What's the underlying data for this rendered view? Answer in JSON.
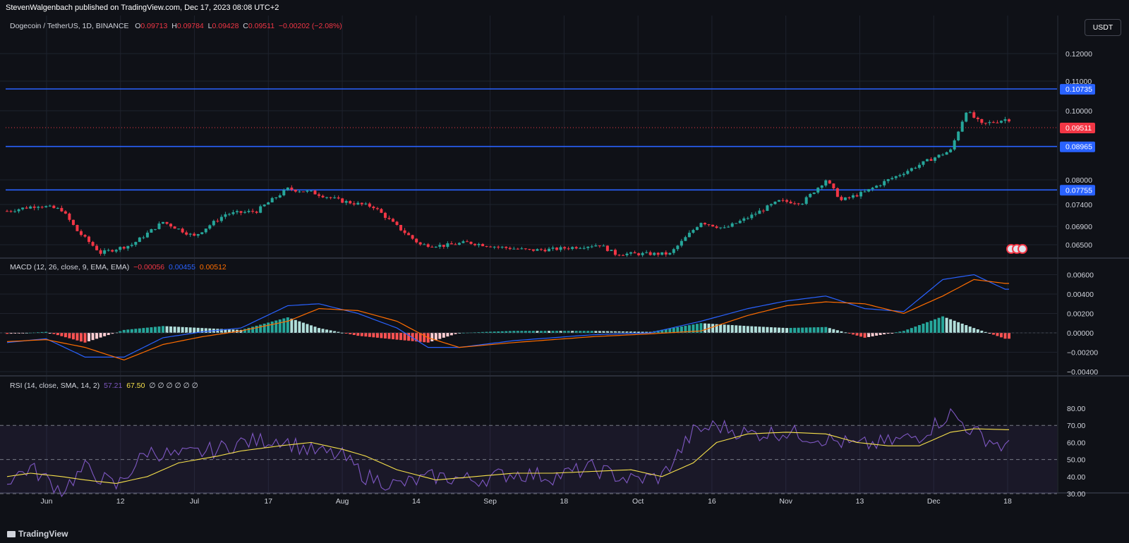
{
  "publisher": "StevenWalgenbach published on TradingView.com, Dec 17, 2023 08:08 UTC+2",
  "footer_logo": "TradingView",
  "currency_button": "USDT",
  "colors": {
    "up": "#26a69a",
    "down": "#f23645",
    "level": "#2962ff",
    "macd": "#2962ff",
    "signal": "#ff6d00",
    "rsi": "#7e57c2",
    "rsi_ma": "#f7e14b",
    "bg": "#0f1117",
    "grid": "#1e222d",
    "axis_text": "#d1d4dc"
  },
  "header": {
    "symbol": "Dogecoin / TetherUS, 1D, BINANCE",
    "o_label": "O",
    "o": "0.09713",
    "h_label": "H",
    "h": "0.09784",
    "l_label": "L",
    "l": "0.09428",
    "c_label": "C",
    "c": "0.09511",
    "change": "−0.00202 (−2.08%)"
  },
  "macd_legend": {
    "label": "MACD (12, 26, close, 9, EMA, EMA)",
    "hist": "−0.00056",
    "macd": "0.00455",
    "signal": "0.00512"
  },
  "rsi_legend": {
    "label": "RSI (14, close, SMA, 14, 2)",
    "rsi": "57.21",
    "ma": "67.50",
    "extra": "∅ ∅ ∅ ∅ ∅ ∅"
  },
  "chart_data": {
    "type": "candlestick",
    "x_ticks": [
      "Jun",
      "12",
      "Jul",
      "17",
      "Aug",
      "14",
      "Sep",
      "18",
      "Oct",
      "16",
      "Nov",
      "13",
      "Dec",
      "18"
    ],
    "price_ticks": [
      "0.12000",
      "0.11000",
      "0.10000",
      "0.08000",
      "0.07400",
      "0.06900",
      "0.06500"
    ],
    "price_levels": [
      "0.10735",
      "0.08965",
      "0.07755"
    ],
    "last_price": "0.09511",
    "macd_ticks": [
      "0.00600",
      "0.00400",
      "0.00200",
      "0.00000",
      "−0.00200",
      "−0.00400"
    ],
    "rsi_ticks": [
      "80.00",
      "70.00",
      "60.00",
      "50.00",
      "40.00",
      "30.00"
    ],
    "price_anchors": [
      [
        0,
        0.0725
      ],
      [
        8,
        0.0738
      ],
      [
        14,
        0.0728
      ],
      [
        18,
        0.068
      ],
      [
        24,
        0.0632
      ],
      [
        32,
        0.065
      ],
      [
        40,
        0.07
      ],
      [
        48,
        0.0668
      ],
      [
        56,
        0.0718
      ],
      [
        64,
        0.0725
      ],
      [
        72,
        0.0778
      ],
      [
        78,
        0.077
      ],
      [
        86,
        0.0748
      ],
      [
        94,
        0.0735
      ],
      [
        100,
        0.069
      ],
      [
        106,
        0.065
      ],
      [
        112,
        0.0648
      ],
      [
        118,
        0.0655
      ],
      [
        126,
        0.0645
      ],
      [
        134,
        0.0638
      ],
      [
        140,
        0.064
      ],
      [
        146,
        0.0645
      ],
      [
        152,
        0.065
      ],
      [
        156,
        0.063
      ],
      [
        170,
        0.063
      ],
      [
        178,
        0.07
      ],
      [
        184,
        0.0685
      ],
      [
        190,
        0.071
      ],
      [
        198,
        0.0748
      ],
      [
        204,
        0.0745
      ],
      [
        210,
        0.08
      ],
      [
        214,
        0.075
      ],
      [
        220,
        0.077
      ],
      [
        228,
        0.081
      ],
      [
        236,
        0.0855
      ],
      [
        242,
        0.0885
      ],
      [
        246,
        0.1
      ],
      [
        250,
        0.096
      ],
      [
        256,
        0.0975
      ]
    ],
    "macd_anchors": [
      [
        0,
        -0.001,
        -0.0009
      ],
      [
        10,
        -0.0006,
        -0.0007
      ],
      [
        20,
        -0.0025,
        -0.0015
      ],
      [
        30,
        -0.0025,
        -0.0028
      ],
      [
        40,
        -0.0005,
        -0.0012
      ],
      [
        50,
        0.0001,
        -0.0004
      ],
      [
        60,
        0.0005,
        0.0002
      ],
      [
        72,
        0.0028,
        0.0012
      ],
      [
        80,
        0.003,
        0.0025
      ],
      [
        90,
        0.002,
        0.0023
      ],
      [
        100,
        0.0005,
        0.0012
      ],
      [
        108,
        -0.0015,
        -0.0005
      ],
      [
        116,
        -0.0015,
        -0.0015
      ],
      [
        130,
        -0.0008,
        -0.001
      ],
      [
        150,
        -0.0002,
        -0.0004
      ],
      [
        165,
        0.0,
        -0.0001
      ],
      [
        178,
        0.0012,
        0.0002
      ],
      [
        190,
        0.0025,
        0.0018
      ],
      [
        200,
        0.0033,
        0.0028
      ],
      [
        210,
        0.0038,
        0.0032
      ],
      [
        220,
        0.0025,
        0.003
      ],
      [
        230,
        0.0022,
        0.002
      ],
      [
        240,
        0.0055,
        0.0038
      ],
      [
        248,
        0.006,
        0.0055
      ],
      [
        256,
        0.0045,
        0.0051
      ]
    ],
    "rsi_anchors": [
      [
        0,
        38,
        40
      ],
      [
        6,
        45,
        42
      ],
      [
        14,
        32,
        40
      ],
      [
        20,
        45,
        38
      ],
      [
        28,
        34,
        36
      ],
      [
        36,
        55,
        40
      ],
      [
        44,
        52,
        48
      ],
      [
        54,
        56,
        52
      ],
      [
        60,
        60,
        55
      ],
      [
        70,
        62,
        58
      ],
      [
        78,
        55,
        60
      ],
      [
        86,
        52,
        56
      ],
      [
        92,
        40,
        52
      ],
      [
        100,
        35,
        44
      ],
      [
        110,
        40,
        38
      ],
      [
        120,
        38,
        40
      ],
      [
        130,
        42,
        42
      ],
      [
        140,
        40,
        42
      ],
      [
        150,
        45,
        43
      ],
      [
        160,
        38,
        44
      ],
      [
        168,
        40,
        40
      ],
      [
        176,
        66,
        48
      ],
      [
        182,
        70,
        60
      ],
      [
        190,
        65,
        65
      ],
      [
        200,
        66,
        66
      ],
      [
        210,
        62,
        65
      ],
      [
        218,
        58,
        60
      ],
      [
        226,
        60,
        58
      ],
      [
        234,
        64,
        58
      ],
      [
        242,
        77,
        66
      ],
      [
        248,
        66,
        68
      ],
      [
        256,
        57,
        67.5
      ]
    ]
  }
}
